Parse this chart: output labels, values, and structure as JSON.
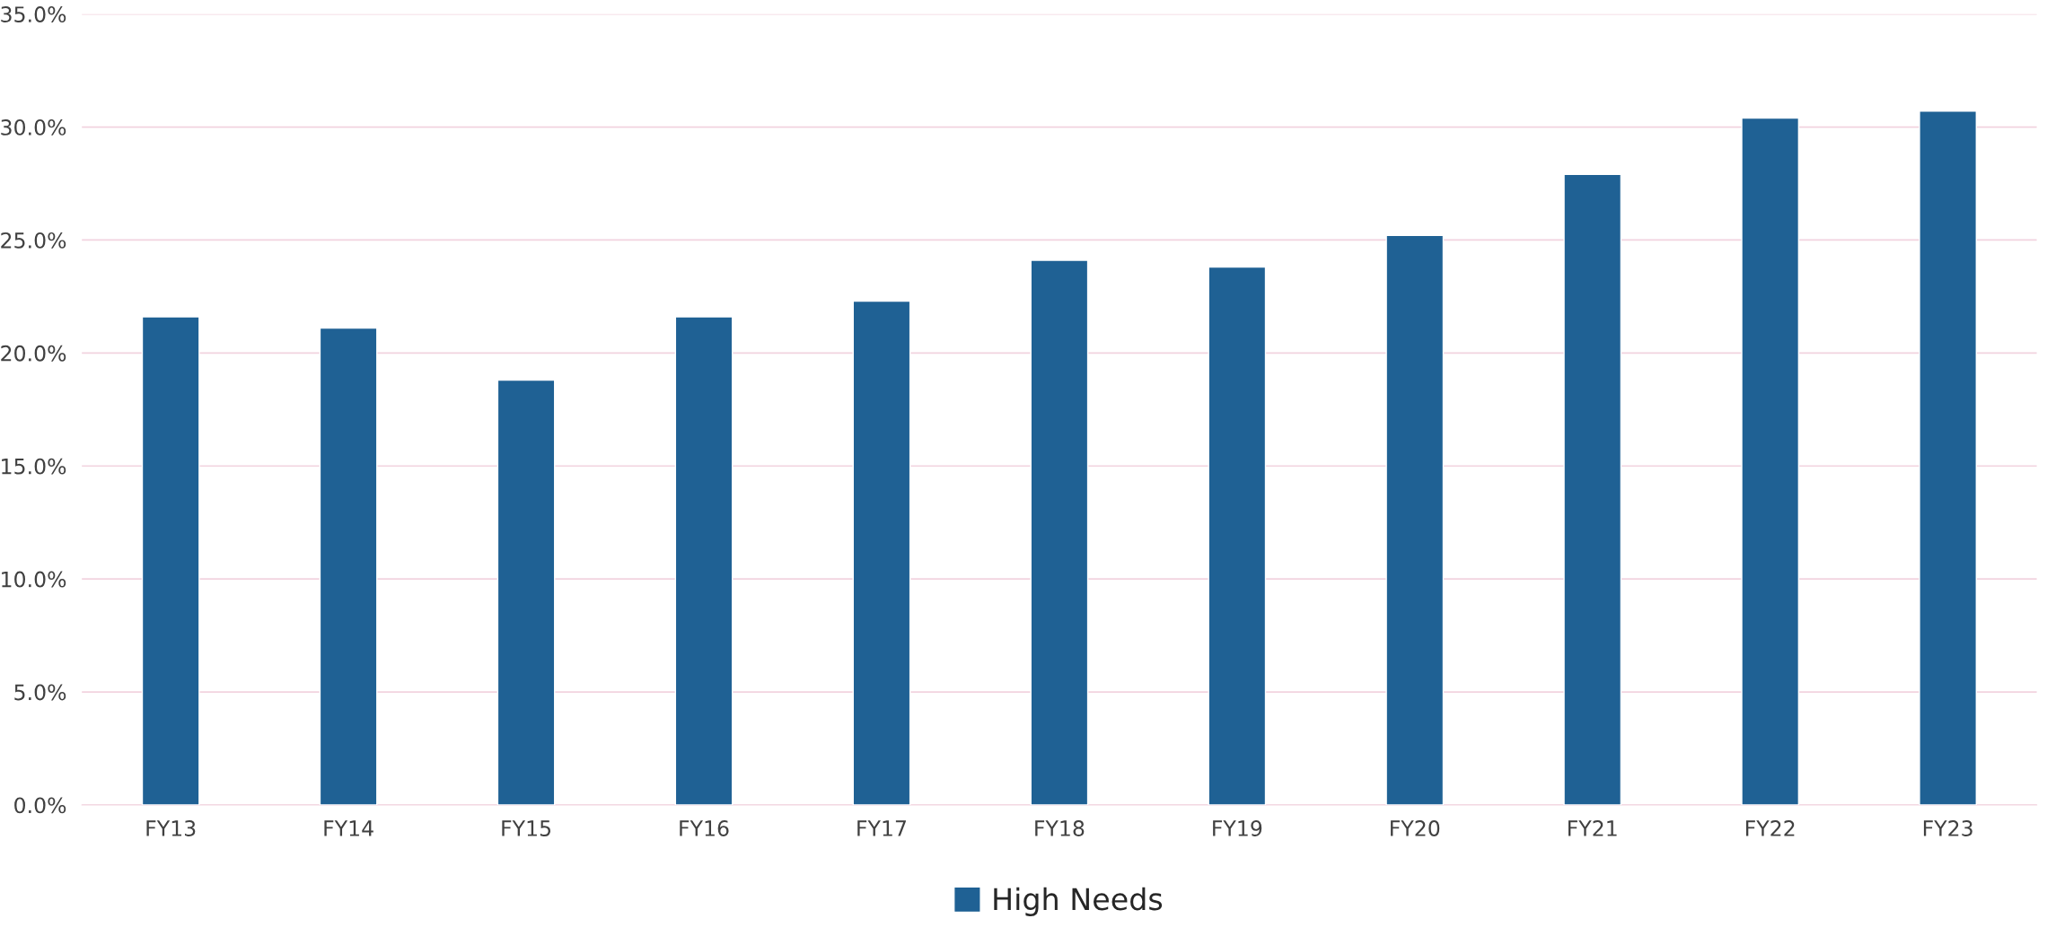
{
  "chart_data": {
    "type": "bar",
    "categories": [
      "FY13",
      "FY14",
      "FY15",
      "FY16",
      "FY17",
      "FY18",
      "FY19",
      "FY20",
      "FY21",
      "FY22",
      "FY23"
    ],
    "series": [
      {
        "name": "High Needs",
        "color": "#1f6194",
        "values": [
          21.6,
          21.1,
          18.8,
          21.6,
          22.3,
          24.1,
          23.8,
          25.2,
          27.9,
          30.4,
          30.7
        ]
      }
    ],
    "ylim": [
      0,
      35
    ],
    "yticks": [
      {
        "value": 0,
        "label": "0.0%"
      },
      {
        "value": 5,
        "label": "5.0%"
      },
      {
        "value": 10,
        "label": "10.0%"
      },
      {
        "value": 15,
        "label": "15.0%"
      },
      {
        "value": 20,
        "label": "20.0%"
      },
      {
        "value": 25,
        "label": "25.0%"
      },
      {
        "value": 30,
        "label": "30.0%"
      },
      {
        "value": 35,
        "label": "35.0%"
      }
    ],
    "grid": "y",
    "legend": "bottom"
  }
}
